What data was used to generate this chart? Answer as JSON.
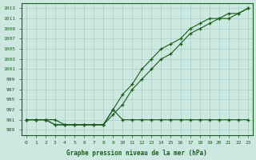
{
  "xlabel": "Graphe pression niveau de la mer (hPa)",
  "x": [
    0,
    1,
    2,
    3,
    4,
    5,
    6,
    7,
    8,
    9,
    10,
    11,
    12,
    13,
    14,
    15,
    16,
    17,
    18,
    19,
    20,
    21,
    22,
    23
  ],
  "line1": [
    991,
    991,
    991,
    991,
    990,
    990,
    990,
    990,
    990,
    993,
    996,
    998,
    1001,
    1003,
    1005,
    1006,
    1007,
    1009,
    1010,
    1011,
    1011,
    1012,
    1012,
    1013
  ],
  "line2": [
    991,
    991,
    991,
    990,
    990,
    990,
    990,
    990,
    990,
    992,
    994,
    997,
    999,
    1001,
    1003,
    1004,
    1006,
    1008,
    1009,
    1010,
    1011,
    1011,
    1012,
    1013
  ],
  "line3": [
    991,
    991,
    991,
    990,
    990,
    990,
    990,
    990,
    990,
    993,
    991,
    991,
    991,
    991,
    991,
    991,
    991,
    991,
    991,
    991,
    991,
    991,
    991,
    991
  ],
  "bg_color": "#cce8e0",
  "grid_color": "#a8d0c8",
  "line_color": "#1a5c1a",
  "marker": "+",
  "ylim": [
    988,
    1014
  ],
  "yticks": [
    989,
    991,
    993,
    995,
    997,
    999,
    1001,
    1003,
    1005,
    1007,
    1009,
    1011,
    1013
  ],
  "xlim": [
    -0.5,
    23.5
  ],
  "xticks": [
    0,
    1,
    2,
    3,
    4,
    5,
    6,
    7,
    8,
    9,
    10,
    11,
    12,
    13,
    14,
    15,
    16,
    17,
    18,
    19,
    20,
    21,
    22,
    23
  ]
}
